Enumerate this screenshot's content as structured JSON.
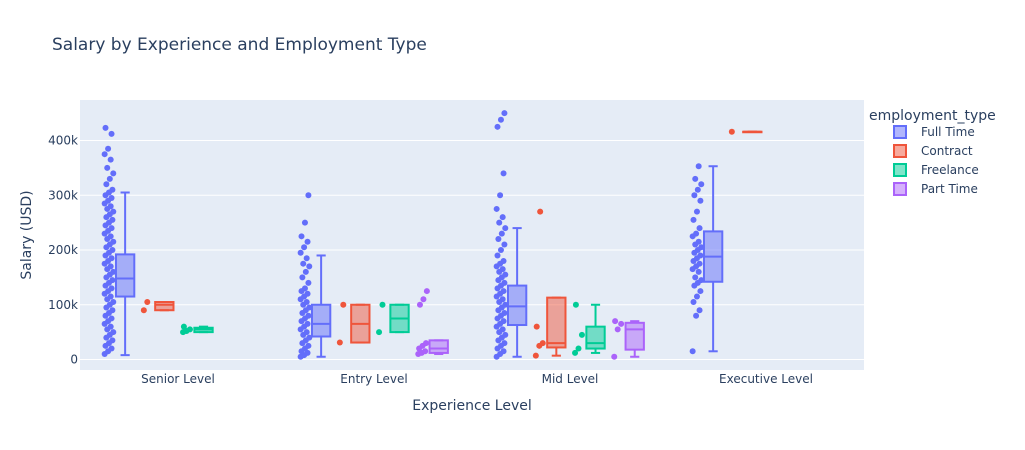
{
  "chart_data": {
    "type": "box",
    "title": "Salary by Experience and Employment Type",
    "xlabel": "Experience Level",
    "ylabel": "Salary (USD)",
    "categories": [
      "Senior Level",
      "Entry Level",
      "Mid Level",
      "Executive Level"
    ],
    "ylim": [
      -20000,
      475000
    ],
    "yticks": [
      0,
      100000,
      200000,
      300000,
      400000
    ],
    "ytick_labels": [
      "0",
      "100k",
      "200k",
      "300k",
      "400k"
    ],
    "grid": true,
    "legend": {
      "title": "employment_type",
      "placement": "top-right"
    },
    "series": [
      {
        "name": "Full Time",
        "color": "#636efa",
        "boxes": [
          {
            "category": "Senior Level",
            "min": 8000,
            "q1": 115000,
            "median": 148000,
            "q3": 192000,
            "max": 305000,
            "points": [
              10000,
              15000,
              20000,
              25000,
              30000,
              35000,
              40000,
              45000,
              50000,
              55000,
              60000,
              65000,
              70000,
              75000,
              80000,
              85000,
              90000,
              95000,
              100000,
              105000,
              110000,
              115000,
              120000,
              125000,
              130000,
              135000,
              140000,
              145000,
              150000,
              155000,
              160000,
              165000,
              170000,
              175000,
              180000,
              185000,
              190000,
              195000,
              200000,
              205000,
              210000,
              215000,
              220000,
              225000,
              230000,
              235000,
              240000,
              245000,
              250000,
              255000,
              260000,
              265000,
              270000,
              275000,
              280000,
              285000,
              290000,
              295000,
              300000,
              305000,
              310000,
              320000,
              330000,
              340000,
              350000,
              365000,
              375000,
              385000,
              412000,
              423000
            ]
          },
          {
            "category": "Entry Level",
            "min": 5000,
            "q1": 42000,
            "median": 65000,
            "q3": 100000,
            "max": 190000,
            "points": [
              5000,
              8000,
              12000,
              15000,
              20000,
              25000,
              30000,
              35000,
              40000,
              45000,
              50000,
              55000,
              60000,
              65000,
              70000,
              75000,
              80000,
              85000,
              90000,
              95000,
              100000,
              105000,
              110000,
              115000,
              120000,
              125000,
              130000,
              140000,
              150000,
              160000,
              170000,
              175000,
              185000,
              195000,
              205000,
              215000,
              225000,
              250000,
              300000
            ]
          },
          {
            "category": "Mid Level",
            "min": 5000,
            "q1": 63000,
            "median": 97000,
            "q3": 135000,
            "max": 240000,
            "points": [
              5000,
              10000,
              15000,
              20000,
              25000,
              30000,
              35000,
              40000,
              45000,
              50000,
              55000,
              60000,
              65000,
              70000,
              75000,
              80000,
              85000,
              90000,
              95000,
              100000,
              105000,
              110000,
              115000,
              120000,
              125000,
              130000,
              135000,
              140000,
              145000,
              150000,
              155000,
              160000,
              165000,
              170000,
              175000,
              180000,
              190000,
              200000,
              210000,
              220000,
              230000,
              240000,
              250000,
              260000,
              275000,
              300000,
              340000,
              425000,
              438000,
              450000
            ]
          },
          {
            "category": "Executive Level",
            "min": 15000,
            "q1": 142000,
            "median": 188000,
            "q3": 234000,
            "max": 353000,
            "points": [
              15000,
              80000,
              90000,
              105000,
              115000,
              125000,
              135000,
              140000,
              145000,
              150000,
              160000,
              165000,
              170000,
              175000,
              180000,
              185000,
              190000,
              195000,
              200000,
              205000,
              210000,
              215000,
              225000,
              230000,
              240000,
              255000,
              270000,
              290000,
              300000,
              310000,
              320000,
              330000,
              353000
            ]
          }
        ]
      },
      {
        "name": "Contract",
        "color": "#ef553b",
        "boxes": [
          {
            "category": "Senior Level",
            "min": 90000,
            "q1": 90000,
            "median": 100000,
            "q3": 105000,
            "max": 105000,
            "points": [
              90000,
              105000
            ]
          },
          {
            "category": "Entry Level",
            "min": 31000,
            "q1": 31000,
            "median": 65000,
            "q3": 100000,
            "max": 100000,
            "points": [
              31000,
              100000
            ]
          },
          {
            "category": "Mid Level",
            "min": 7000,
            "q1": 22000,
            "median": 30000,
            "q3": 113000,
            "max": 113000,
            "points": [
              7000,
              25000,
              30000,
              60000,
              270000
            ]
          },
          {
            "category": "Executive Level",
            "min": 416000,
            "q1": 416000,
            "median": 416000,
            "q3": 416000,
            "max": 416000,
            "points": [
              416000
            ]
          }
        ]
      },
      {
        "name": "Freelance",
        "color": "#00cc96",
        "boxes": [
          {
            "category": "Senior Level",
            "min": 50000,
            "q1": 50000,
            "median": 55000,
            "q3": 58000,
            "max": 60000,
            "points": [
              50000,
              52000,
              55000,
              60000
            ]
          },
          {
            "category": "Entry Level",
            "min": 50000,
            "q1": 50000,
            "median": 75000,
            "q3": 100000,
            "max": 100000,
            "points": [
              50000,
              100000
            ]
          },
          {
            "category": "Mid Level",
            "min": 12000,
            "q1": 20000,
            "median": 30000,
            "q3": 60000,
            "max": 100000,
            "points": [
              12000,
              20000,
              45000,
              100000
            ]
          }
        ]
      },
      {
        "name": "Part Time",
        "color": "#ab63fa",
        "boxes": [
          {
            "category": "Entry Level",
            "min": 10000,
            "q1": 12000,
            "median": 20000,
            "q3": 35000,
            "max": 35000,
            "points": [
              10000,
              12000,
              15000,
              20000,
              25000,
              30000,
              100000,
              110000,
              125000
            ]
          },
          {
            "category": "Mid Level",
            "min": 5000,
            "q1": 18000,
            "median": 55000,
            "q3": 67000,
            "max": 70000,
            "points": [
              5000,
              55000,
              65000,
              70000
            ]
          }
        ]
      }
    ]
  }
}
